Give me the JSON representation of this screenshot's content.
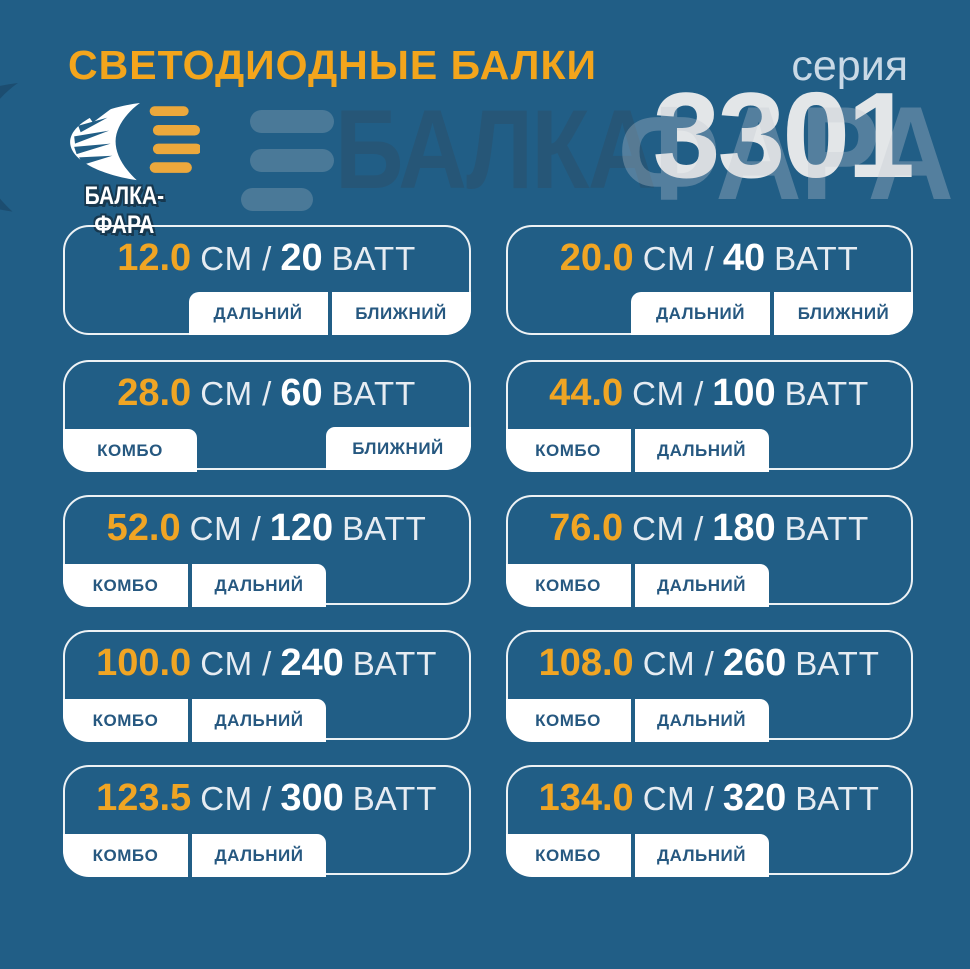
{
  "header": {
    "title": "СВЕТОДИОДНЫЕ БАЛКИ",
    "series_label": "серия",
    "series_number": "3301",
    "brand": "БАЛКА-ФАРА"
  },
  "watermark": {
    "left_text": "БАЛКА",
    "right_text": "ФАРА"
  },
  "units": {
    "length": "СМ",
    "separator": "/",
    "power": "ВАТТ"
  },
  "colors": {
    "background": "#215e86",
    "accent_orange": "#f0a524",
    "title_orange": "#f3a51c",
    "tag_text_blue": "#265880",
    "card_border_white": "#ffffff",
    "series_light": "#c9d9e6",
    "series_number_silver": "#e3e6e8",
    "logo_bar_orange": "#eca83c"
  },
  "icons": {
    "logo": "headlight-beam-icon"
  },
  "cards": [
    {
      "size": "12.0",
      "watt": "20",
      "layout": "right",
      "tags": [
        "ДАЛЬНИЙ",
        "БЛИЖНИЙ"
      ]
    },
    {
      "size": "20.0",
      "watt": "40",
      "layout": "right",
      "tags": [
        "ДАЛЬНИЙ",
        "БЛИЖНИЙ"
      ]
    },
    {
      "size": "28.0",
      "watt": "60",
      "layout": "split",
      "tags": [
        "КОМБО",
        "БЛИЖНИЙ"
      ]
    },
    {
      "size": "44.0",
      "watt": "100",
      "layout": "left",
      "tags": [
        "КОМБО",
        "ДАЛЬНИЙ"
      ]
    },
    {
      "size": "52.0",
      "watt": "120",
      "layout": "left",
      "tags": [
        "КОМБО",
        "ДАЛЬНИЙ"
      ]
    },
    {
      "size": "76.0",
      "watt": "180",
      "layout": "left",
      "tags": [
        "КОМБО",
        "ДАЛЬНИЙ"
      ]
    },
    {
      "size": "100.0",
      "watt": "240",
      "layout": "left",
      "tags": [
        "КОМБО",
        "ДАЛЬНИЙ"
      ]
    },
    {
      "size": "108.0",
      "watt": "260",
      "layout": "left",
      "tags": [
        "КОМБО",
        "ДАЛЬНИЙ"
      ]
    },
    {
      "size": "123.5",
      "watt": "300",
      "layout": "left",
      "tags": [
        "КОМБО",
        "ДАЛЬНИЙ"
      ]
    },
    {
      "size": "134.0",
      "watt": "320",
      "layout": "left",
      "tags": [
        "КОМБО",
        "ДАЛЬНИЙ"
      ]
    }
  ]
}
